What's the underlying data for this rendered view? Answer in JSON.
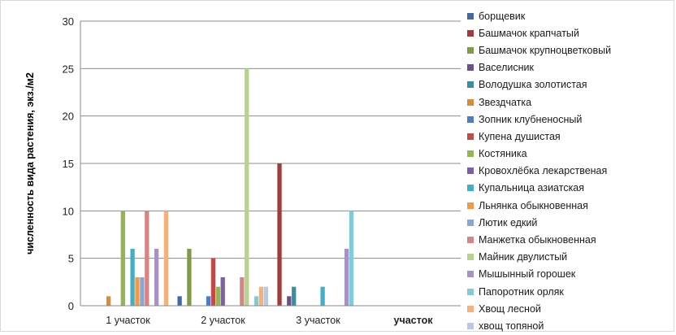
{
  "chart_data": {
    "type": "bar",
    "ylabel": "численность вида растения, экз./м2",
    "ylim": [
      0,
      30
    ],
    "yticks": [
      0,
      5,
      10,
      15,
      20,
      25,
      30
    ],
    "grid": true,
    "legend_position": "right",
    "categories": [
      "1 участок",
      "2 участок",
      "3 участок",
      "участок"
    ],
    "series": [
      {
        "name": "борщевик",
        "color": "#3f6aa6",
        "values": [
          0,
          1,
          0,
          0
        ]
      },
      {
        "name": "Башмачок крапчатый",
        "color": "#a23b3a",
        "values": [
          0,
          0,
          15,
          0
        ]
      },
      {
        "name": "Башмачок крупноцветковый",
        "color": "#7f9a48",
        "values": [
          0,
          6,
          0,
          0
        ]
      },
      {
        "name": "Васелисник",
        "color": "#6a4f8f",
        "values": [
          0,
          0,
          1,
          0
        ]
      },
      {
        "name": "Володушка золотистая",
        "color": "#3b8ea0",
        "values": [
          0,
          0,
          2,
          0
        ]
      },
      {
        "name": "Звездчатка",
        "color": "#d98b3a",
        "values": [
          1,
          0,
          0,
          0
        ]
      },
      {
        "name": "Зопник клубненосный",
        "color": "#4f7bc0",
        "values": [
          0,
          1,
          0,
          0
        ]
      },
      {
        "name": "Купена душистая",
        "color": "#c44a48",
        "values": [
          0,
          5,
          0,
          0
        ]
      },
      {
        "name": "Костяника",
        "color": "#93b553",
        "values": [
          10,
          2,
          0,
          0
        ]
      },
      {
        "name": "Кровохлёбка лекарственая",
        "color": "#7d5fa6",
        "values": [
          0,
          3,
          0,
          0
        ]
      },
      {
        "name": "Купальница азиатская",
        "color": "#3fb0c6",
        "values": [
          6,
          0,
          2,
          0
        ]
      },
      {
        "name": "Льнянка обыкновенная",
        "color": "#f29a45",
        "values": [
          3,
          0,
          0,
          0
        ]
      },
      {
        "name": "Лютик едкий",
        "color": "#8ba7d1",
        "values": [
          3,
          0,
          0,
          0
        ]
      },
      {
        "name": "Манжетка обыкновенная",
        "color": "#d68583",
        "values": [
          10,
          3,
          0,
          0
        ]
      },
      {
        "name": "Майник двулистый",
        "color": "#b4d58c",
        "values": [
          0,
          25,
          0,
          0
        ]
      },
      {
        "name": "Мышынный горошек",
        "color": "#a792c6",
        "values": [
          6,
          0,
          6,
          0
        ]
      },
      {
        "name": "Папоротник орляк",
        "color": "#7fccd8",
        "values": [
          0,
          1,
          10,
          0
        ]
      },
      {
        "name": "Хвощ лесной",
        "color": "#f7b07a",
        "values": [
          10,
          2,
          0,
          0
        ]
      },
      {
        "name": "хвощ топяной",
        "color": "#b7c8e6",
        "values": [
          0,
          2,
          0,
          0
        ]
      }
    ]
  }
}
